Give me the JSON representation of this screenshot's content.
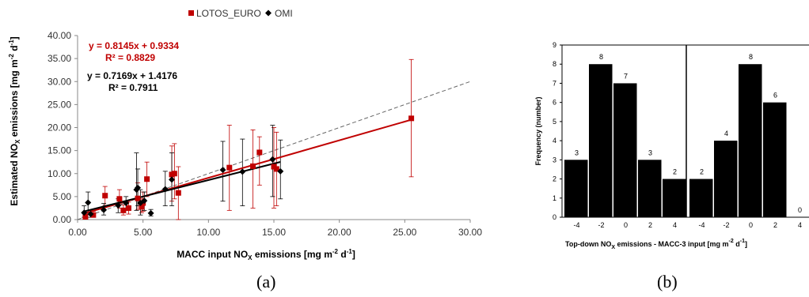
{
  "figure_labels": {
    "a": "(a)",
    "b": "(b)"
  },
  "chart_data": [
    {
      "type": "scatter",
      "xlabel": {
        "pre": "MACC input NO",
        "sub": "X",
        "mid": " emissions [mg m",
        "sup1": "-2",
        "mid2": " d",
        "sup2": "-1",
        "post": "]"
      },
      "ylabel": {
        "pre": "Estimated NO",
        "sub": "X",
        "mid": " emissions [mg m",
        "sup1": "-2",
        "mid2": " d",
        "sup2": "-1",
        "post": "]"
      },
      "xlim": [
        0,
        30
      ],
      "ylim": [
        0,
        40
      ],
      "xticks": [
        "0.00",
        "5.00",
        "10.00",
        "15.00",
        "20.00",
        "25.00",
        "30.00"
      ],
      "yticks": [
        "0.00",
        "5.00",
        "10.00",
        "15.00",
        "20.00",
        "25.00",
        "30.00",
        "35.00",
        "40.00"
      ],
      "grid": false,
      "legend_position": "top-center",
      "series": [
        {
          "name": "LOTOS_EURO",
          "color": "#c00000",
          "marker": "square",
          "equation": "y = 0.8145x + 0.9334",
          "r2": "R² = 0.8829",
          "slope": 0.8145,
          "intercept": 0.9334,
          "points": [
            {
              "x": 0.6,
              "y": 0.6,
              "lo": 0.3,
              "hi": 1.3
            },
            {
              "x": 1.2,
              "y": 1.0,
              "lo": 0.6,
              "hi": 1.8
            },
            {
              "x": 2.1,
              "y": 5.2,
              "lo": 3.0,
              "hi": 7.2
            },
            {
              "x": 3.2,
              "y": 4.5,
              "lo": 2.5,
              "hi": 6.5
            },
            {
              "x": 3.5,
              "y": 2.0,
              "lo": 1.0,
              "hi": 3.2
            },
            {
              "x": 3.9,
              "y": 2.5,
              "lo": 1.2,
              "hi": 3.8
            },
            {
              "x": 4.6,
              "y": 4.6,
              "lo": 2.2,
              "hi": 8.0
            },
            {
              "x": 4.9,
              "y": 2.8,
              "lo": 1.5,
              "hi": 4.5
            },
            {
              "x": 5.0,
              "y": 3.6,
              "lo": 1.8,
              "hi": 6.0
            },
            {
              "x": 5.3,
              "y": 8.8,
              "lo": 5.0,
              "hi": 12.5
            },
            {
              "x": 7.2,
              "y": 9.8,
              "lo": 4.0,
              "hi": 16.0
            },
            {
              "x": 7.4,
              "y": 10.0,
              "lo": 4.5,
              "hi": 16.5
            },
            {
              "x": 7.7,
              "y": 5.8,
              "lo": 0.0,
              "hi": 11.5
            },
            {
              "x": 11.6,
              "y": 11.3,
              "lo": 2.0,
              "hi": 20.5
            },
            {
              "x": 13.4,
              "y": 11.6,
              "lo": 2.5,
              "hi": 19.5
            },
            {
              "x": 13.9,
              "y": 14.6,
              "lo": 7.5,
              "hi": 18.0
            },
            {
              "x": 15.0,
              "y": 11.5,
              "lo": 2.5,
              "hi": 20.0
            },
            {
              "x": 15.2,
              "y": 11.0,
              "lo": 3.0,
              "hi": 19.0
            },
            {
              "x": 25.5,
              "y": 22.0,
              "lo": 9.3,
              "hi": 34.8
            }
          ]
        },
        {
          "name": "OMI",
          "color": "#000000",
          "marker": "diamond",
          "equation": "y = 0.7169x + 1.4176",
          "r2": "R² = 0.7911",
          "slope": 0.7169,
          "intercept": 1.4176,
          "points": [
            {
              "x": 0.5,
              "y": 1.5,
              "lo": 0.5,
              "hi": 3.0
            },
            {
              "x": 0.8,
              "y": 3.7,
              "lo": 1.5,
              "hi": 6.0
            },
            {
              "x": 1.0,
              "y": 1.2,
              "lo": 0.5,
              "hi": 2.0
            },
            {
              "x": 2.0,
              "y": 2.1,
              "lo": 1.0,
              "hi": 3.5
            },
            {
              "x": 3.1,
              "y": 3.1,
              "lo": 1.5,
              "hi": 4.5
            },
            {
              "x": 3.7,
              "y": 3.6,
              "lo": 2.0,
              "hi": 5.0
            },
            {
              "x": 4.5,
              "y": 6.5,
              "lo": 2.0,
              "hi": 14.5
            },
            {
              "x": 4.6,
              "y": 6.9,
              "lo": 3.0,
              "hi": 11.0
            },
            {
              "x": 4.8,
              "y": 3.6,
              "lo": 1.0,
              "hi": 6.5
            },
            {
              "x": 5.1,
              "y": 4.1,
              "lo": 2.0,
              "hi": 6.0
            },
            {
              "x": 5.6,
              "y": 1.4,
              "lo": 0.8,
              "hi": 2.2
            },
            {
              "x": 6.7,
              "y": 6.6,
              "lo": 3.0,
              "hi": 10.5
            },
            {
              "x": 7.2,
              "y": 8.7,
              "lo": 3.0,
              "hi": 14.5
            },
            {
              "x": 11.1,
              "y": 10.8,
              "lo": 4.0,
              "hi": 17.0
            },
            {
              "x": 12.6,
              "y": 10.4,
              "lo": 3.0,
              "hi": 17.5
            },
            {
              "x": 14.9,
              "y": 13.1,
              "lo": 5.0,
              "hi": 20.5
            },
            {
              "x": 15.5,
              "y": 10.5,
              "lo": 4.5,
              "hi": 17.3
            }
          ]
        }
      ],
      "reference_line": {
        "type": "1:1",
        "style": "dashed",
        "color": "#666666"
      }
    },
    {
      "type": "bar",
      "xlabel": {
        "pre": "Top-down NO",
        "sub": "X",
        "mid": " emissions  - MACC-3  input [mg m",
        "sup1": "-2",
        "mid2": " d",
        "sup2": "-1",
        "post": "]"
      },
      "ylabel": "Frequency (number)",
      "ylim": [
        0,
        9
      ],
      "yticks": [
        "0",
        "1",
        "2",
        "3",
        "4",
        "5",
        "6",
        "7",
        "8",
        "9"
      ],
      "grid": false,
      "bar_color": "#000000",
      "panels": [
        {
          "categories": [
            "-4",
            "-2",
            "0",
            "2",
            "4"
          ],
          "values": [
            3,
            8,
            7,
            3,
            2
          ]
        },
        {
          "categories": [
            "-4",
            "-2",
            "0",
            "2",
            "4"
          ],
          "values": [
            2,
            4,
            8,
            6,
            0
          ]
        }
      ]
    }
  ]
}
